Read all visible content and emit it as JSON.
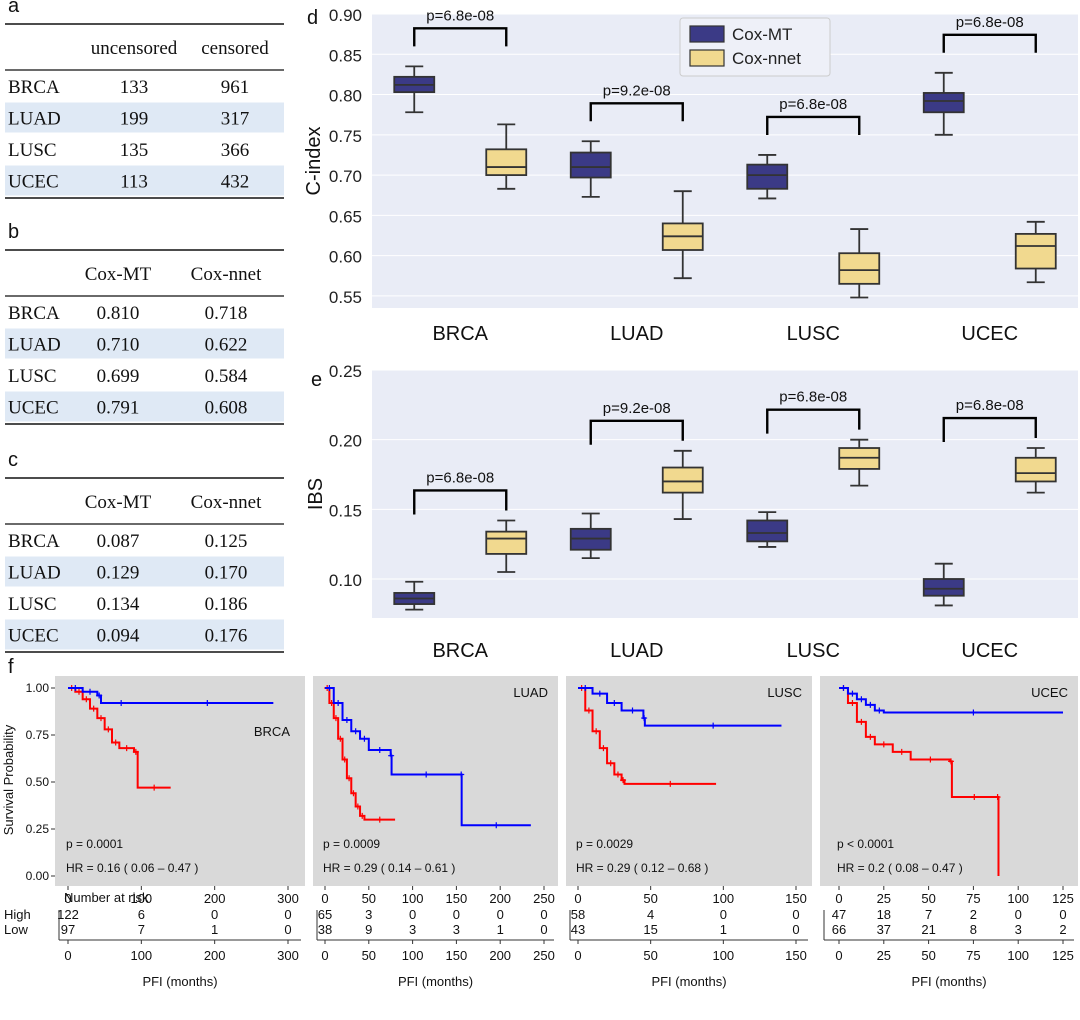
{
  "panel_labels": {
    "a": "a",
    "b": "b",
    "c": "c",
    "d": "d",
    "e": "e",
    "f": "f"
  },
  "table_a": {
    "headers": [
      "",
      "uncensored",
      "censored"
    ],
    "rows": [
      [
        "BRCA",
        "133",
        "961"
      ],
      [
        "LUAD",
        "199",
        "317"
      ],
      [
        "LUSC",
        "135",
        "366"
      ],
      [
        "UCEC",
        "113",
        "432"
      ]
    ]
  },
  "table_b": {
    "headers": [
      "",
      "Cox-MT",
      "Cox-nnet"
    ],
    "rows": [
      [
        "BRCA",
        "0.810",
        "0.718"
      ],
      [
        "LUAD",
        "0.710",
        "0.622"
      ],
      [
        "LUSC",
        "0.699",
        "0.584"
      ],
      [
        "UCEC",
        "0.791",
        "0.608"
      ]
    ]
  },
  "table_c": {
    "headers": [
      "",
      "Cox-MT",
      "Cox-nnet"
    ],
    "rows": [
      [
        "BRCA",
        "0.087",
        "0.125"
      ],
      [
        "LUAD",
        "0.129",
        "0.170"
      ],
      [
        "LUSC",
        "0.134",
        "0.186"
      ],
      [
        "UCEC",
        "0.094",
        "0.176"
      ]
    ]
  },
  "colors": {
    "cox_mt": "#3b3a86",
    "cox_nnet": "#f1d98f",
    "row_shade": "#dfe9f5",
    "km_bg": "#d9d9d9",
    "high": "#ff0000",
    "low": "#0000ff",
    "plot_bg": "#e9ecf6"
  },
  "chart_data": [
    {
      "type": "box",
      "panel": "d",
      "ylabel": "C-index",
      "ylim": [
        0.535,
        0.9
      ],
      "yticks": [
        "0.90",
        "0.85",
        "0.80",
        "0.75",
        "0.70",
        "0.65",
        "0.60",
        "0.55"
      ],
      "categories": [
        "BRCA",
        "LUAD",
        "LUSC",
        "UCEC"
      ],
      "legend": [
        "Cox-MT",
        "Cox-nnet"
      ],
      "series": [
        {
          "name": "Cox-MT",
          "boxes": [
            {
              "min": 0.778,
              "q1": 0.803,
              "median": 0.812,
              "q3": 0.822,
              "max": 0.835
            },
            {
              "min": 0.673,
              "q1": 0.697,
              "median": 0.71,
              "q3": 0.728,
              "max": 0.742
            },
            {
              "min": 0.671,
              "q1": 0.683,
              "median": 0.7,
              "q3": 0.713,
              "max": 0.725
            },
            {
              "min": 0.75,
              "q1": 0.778,
              "median": 0.792,
              "q3": 0.802,
              "max": 0.827
            }
          ]
        },
        {
          "name": "Cox-nnet",
          "boxes": [
            {
              "min": 0.683,
              "q1": 0.7,
              "median": 0.71,
              "q3": 0.732,
              "max": 0.763
            },
            {
              "min": 0.572,
              "q1": 0.607,
              "median": 0.624,
              "q3": 0.64,
              "max": 0.68
            },
            {
              "min": 0.548,
              "q1": 0.565,
              "median": 0.582,
              "q3": 0.603,
              "max": 0.633
            },
            {
              "min": 0.567,
              "q1": 0.584,
              "median": 0.612,
              "q3": 0.627,
              "max": 0.642
            }
          ]
        }
      ],
      "annotations": [
        "p=6.8e-08",
        "p=9.2e-08",
        "p=6.8e-08",
        "p=6.8e-08"
      ]
    },
    {
      "type": "box",
      "panel": "e",
      "ylabel": "IBS",
      "ylim": [
        0.072,
        0.25
      ],
      "yticks": [
        "0.25",
        "0.20",
        "0.15",
        "0.10"
      ],
      "categories": [
        "BRCA",
        "LUAD",
        "LUSC",
        "UCEC"
      ],
      "series": [
        {
          "name": "Cox-MT",
          "boxes": [
            {
              "min": 0.078,
              "q1": 0.082,
              "median": 0.086,
              "q3": 0.09,
              "max": 0.098
            },
            {
              "min": 0.115,
              "q1": 0.121,
              "median": 0.129,
              "q3": 0.136,
              "max": 0.147
            },
            {
              "min": 0.123,
              "q1": 0.127,
              "median": 0.133,
              "q3": 0.142,
              "max": 0.148
            },
            {
              "min": 0.081,
              "q1": 0.088,
              "median": 0.093,
              "q3": 0.1,
              "max": 0.111
            }
          ]
        },
        {
          "name": "Cox-nnet",
          "boxes": [
            {
              "min": 0.105,
              "q1": 0.118,
              "median": 0.129,
              "q3": 0.134,
              "max": 0.142
            },
            {
              "min": 0.143,
              "q1": 0.162,
              "median": 0.17,
              "q3": 0.18,
              "max": 0.192
            },
            {
              "min": 0.167,
              "q1": 0.179,
              "median": 0.187,
              "q3": 0.194,
              "max": 0.2
            },
            {
              "min": 0.162,
              "q1": 0.17,
              "median": 0.176,
              "q3": 0.187,
              "max": 0.194
            }
          ]
        }
      ],
      "annotations": [
        "p=6.8e-08",
        "p=9.2e-08",
        "p=6.8e-08",
        "p=6.8e-08"
      ]
    },
    {
      "type": "line",
      "panel": "f",
      "ylabel": "Survival Probability",
      "xlabel": "PFI (months)",
      "yticks": [
        "1.00",
        "0.75",
        "0.50",
        "0.25",
        "0.00"
      ],
      "risk_title": "Number at risk",
      "risk_labels": [
        "High",
        "Low"
      ],
      "plots": [
        {
          "name": "BRCA",
          "xmax": 300,
          "xticks": [
            "0",
            "100",
            "200",
            "300"
          ],
          "p": "p = 0.0001",
          "hr": "HR =  0.16  ( 0.06 – 0.47 )",
          "high": [
            [
              0,
              1
            ],
            [
              10,
              0.98
            ],
            [
              20,
              0.94
            ],
            [
              30,
              0.89
            ],
            [
              40,
              0.84
            ],
            [
              50,
              0.78
            ],
            [
              60,
              0.71
            ],
            [
              70,
              0.68
            ],
            [
              90,
              0.66
            ],
            [
              95,
              0.47
            ],
            [
              140,
              0.47
            ]
          ],
          "low": [
            [
              0,
              1
            ],
            [
              20,
              0.98
            ],
            [
              40,
              0.96
            ],
            [
              45,
              0.92
            ],
            [
              100,
              0.92
            ],
            [
              280,
              0.92
            ]
          ],
          "risk_high": [
            "122",
            "6",
            "0",
            "0"
          ],
          "risk_low": [
            "97",
            "7",
            "1",
            "0"
          ]
        },
        {
          "name": "LUAD",
          "xmax": 250,
          "xticks": [
            "0",
            "50",
            "100",
            "150",
            "200",
            "250"
          ],
          "p": "p = 0.0009",
          "hr": "HR =  0.29  ( 0.14 – 0.61 )",
          "high": [
            [
              0,
              1
            ],
            [
              5,
              0.92
            ],
            [
              10,
              0.84
            ],
            [
              15,
              0.73
            ],
            [
              20,
              0.62
            ],
            [
              25,
              0.52
            ],
            [
              30,
              0.44
            ],
            [
              35,
              0.37
            ],
            [
              40,
              0.32
            ],
            [
              45,
              0.3
            ],
            [
              80,
              0.3
            ]
          ],
          "low": [
            [
              0,
              1
            ],
            [
              10,
              0.92
            ],
            [
              20,
              0.83
            ],
            [
              30,
              0.77
            ],
            [
              40,
              0.73
            ],
            [
              50,
              0.67
            ],
            [
              75,
              0.64
            ],
            [
              76,
              0.54
            ],
            [
              155,
              0.54
            ],
            [
              156,
              0.27
            ],
            [
              235,
              0.27
            ]
          ],
          "risk_high": [
            "65",
            "3",
            "0",
            "0",
            "0",
            "0"
          ],
          "risk_low": [
            "38",
            "9",
            "3",
            "3",
            "1",
            "0"
          ]
        },
        {
          "name": "LUSC",
          "xmax": 150,
          "xticks": [
            "0",
            "50",
            "100",
            "150"
          ],
          "p": "p = 0.0029",
          "hr": "HR =  0.29  ( 0.12 – 0.68 )",
          "high": [
            [
              0,
              1
            ],
            [
              5,
              0.88
            ],
            [
              10,
              0.77
            ],
            [
              15,
              0.68
            ],
            [
              20,
              0.6
            ],
            [
              25,
              0.54
            ],
            [
              30,
              0.51
            ],
            [
              32,
              0.49
            ],
            [
              95,
              0.49
            ]
          ],
          "low": [
            [
              0,
              1
            ],
            [
              10,
              0.97
            ],
            [
              20,
              0.92
            ],
            [
              30,
              0.88
            ],
            [
              45,
              0.84
            ],
            [
              46,
              0.8
            ],
            [
              140,
              0.8
            ]
          ],
          "risk_high": [
            "58",
            "4",
            "0",
            "0"
          ],
          "risk_low": [
            "43",
            "15",
            "1",
            "0"
          ]
        },
        {
          "name": "UCEC",
          "xmax": 125,
          "xticks": [
            "0",
            "25",
            "50",
            "75",
            "100",
            "125"
          ],
          "p": "p < 0.0001",
          "hr": "HR =  0.2  ( 0.08 – 0.47 )",
          "high": [
            [
              0,
              1
            ],
            [
              5,
              0.92
            ],
            [
              10,
              0.82
            ],
            [
              15,
              0.74
            ],
            [
              20,
              0.7
            ],
            [
              30,
              0.66
            ],
            [
              40,
              0.62
            ],
            [
              62,
              0.61
            ],
            [
              63,
              0.42
            ],
            [
              88,
              0.42
            ],
            [
              89,
              0.0
            ]
          ],
          "low": [
            [
              0,
              1
            ],
            [
              5,
              0.97
            ],
            [
              10,
              0.94
            ],
            [
              15,
              0.91
            ],
            [
              20,
              0.88
            ],
            [
              25,
              0.87
            ],
            [
              125,
              0.87
            ]
          ],
          "risk_high": [
            "47",
            "18",
            "7",
            "2",
            "0",
            "0"
          ],
          "risk_low": [
            "66",
            "37",
            "21",
            "8",
            "3",
            "2"
          ]
        }
      ]
    }
  ]
}
